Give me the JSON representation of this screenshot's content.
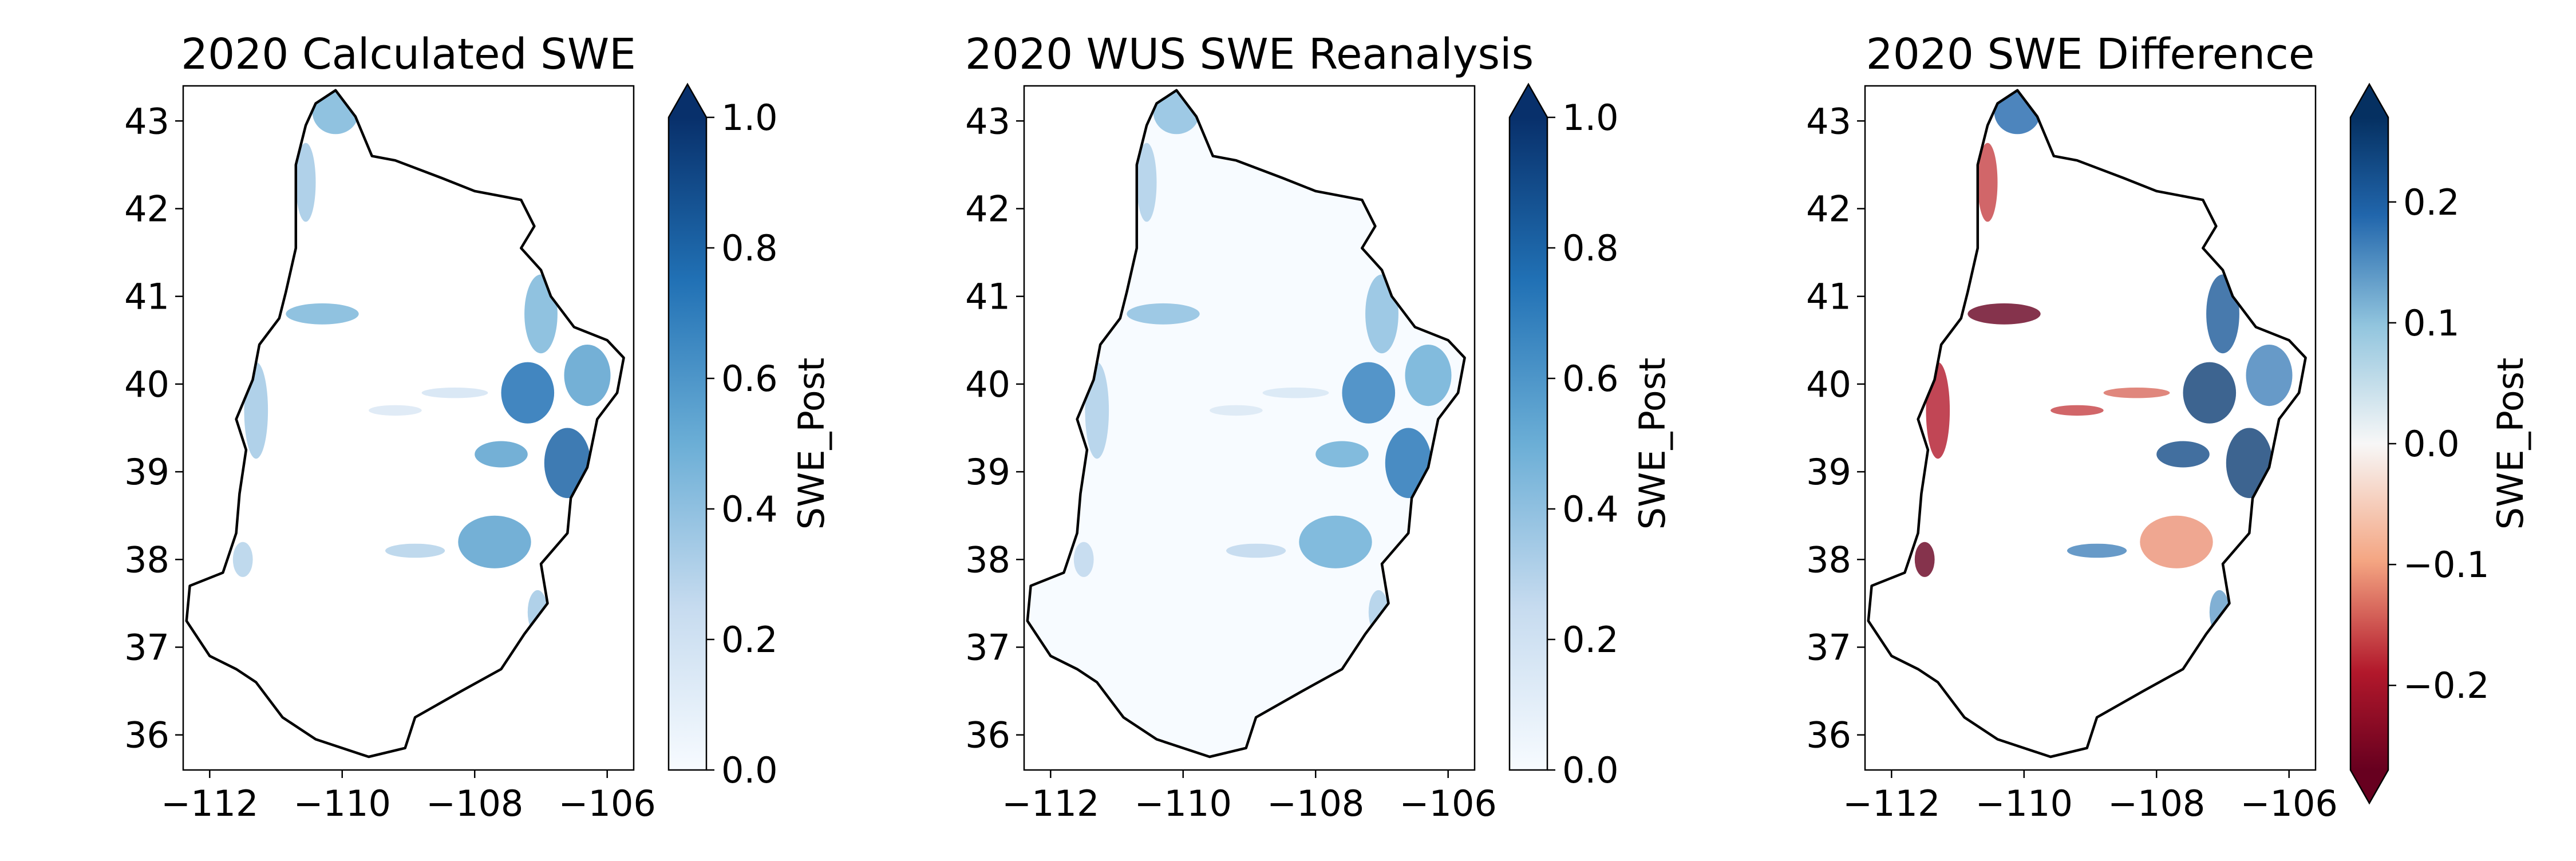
{
  "figure": {
    "panels": [
      {
        "id": "calculated",
        "title": "2020 Calculated SWE",
        "colorbar": {
          "label": "SWE_Post",
          "colormap": "Blues",
          "range": [
            0.0,
            1.0
          ],
          "ticks": [
            "0.0",
            "0.2",
            "0.4",
            "0.6",
            "0.8",
            "1.0"
          ],
          "extend": "max"
        }
      },
      {
        "id": "reanalysis",
        "title": "2020 WUS SWE Reanalysis",
        "colorbar": {
          "label": "SWE_Post",
          "colormap": "Blues",
          "range": [
            0.0,
            1.0
          ],
          "ticks": [
            "0.0",
            "0.2",
            "0.4",
            "0.6",
            "0.8",
            "1.0"
          ],
          "extend": "max"
        }
      },
      {
        "id": "difference",
        "title": "2020 SWE Difference",
        "colorbar": {
          "label": "SWE_Post",
          "colormap": "RdBu",
          "range": [
            -0.27,
            0.27
          ],
          "ticks": [
            "−0.2",
            "−0.1",
            "0.0",
            "0.1",
            "0.2"
          ],
          "extend": "both"
        }
      }
    ],
    "x_ticks": [
      "−112",
      "−110",
      "−108",
      "−106"
    ],
    "y_ticks": [
      "36",
      "37",
      "38",
      "39",
      "40",
      "41",
      "42",
      "43"
    ],
    "x_range": [
      -112.4,
      -105.6
    ],
    "y_range": [
      35.6,
      43.4
    ],
    "colors": {
      "blues_low": "#f7fbff",
      "blues_mid": "#6baed6",
      "blues_high": "#08306b",
      "rdbu_neg": "#67001f",
      "rdbu_zero": "#f7f7f7",
      "rdbu_pos": "#053061",
      "boundary": "#000000"
    }
  }
}
